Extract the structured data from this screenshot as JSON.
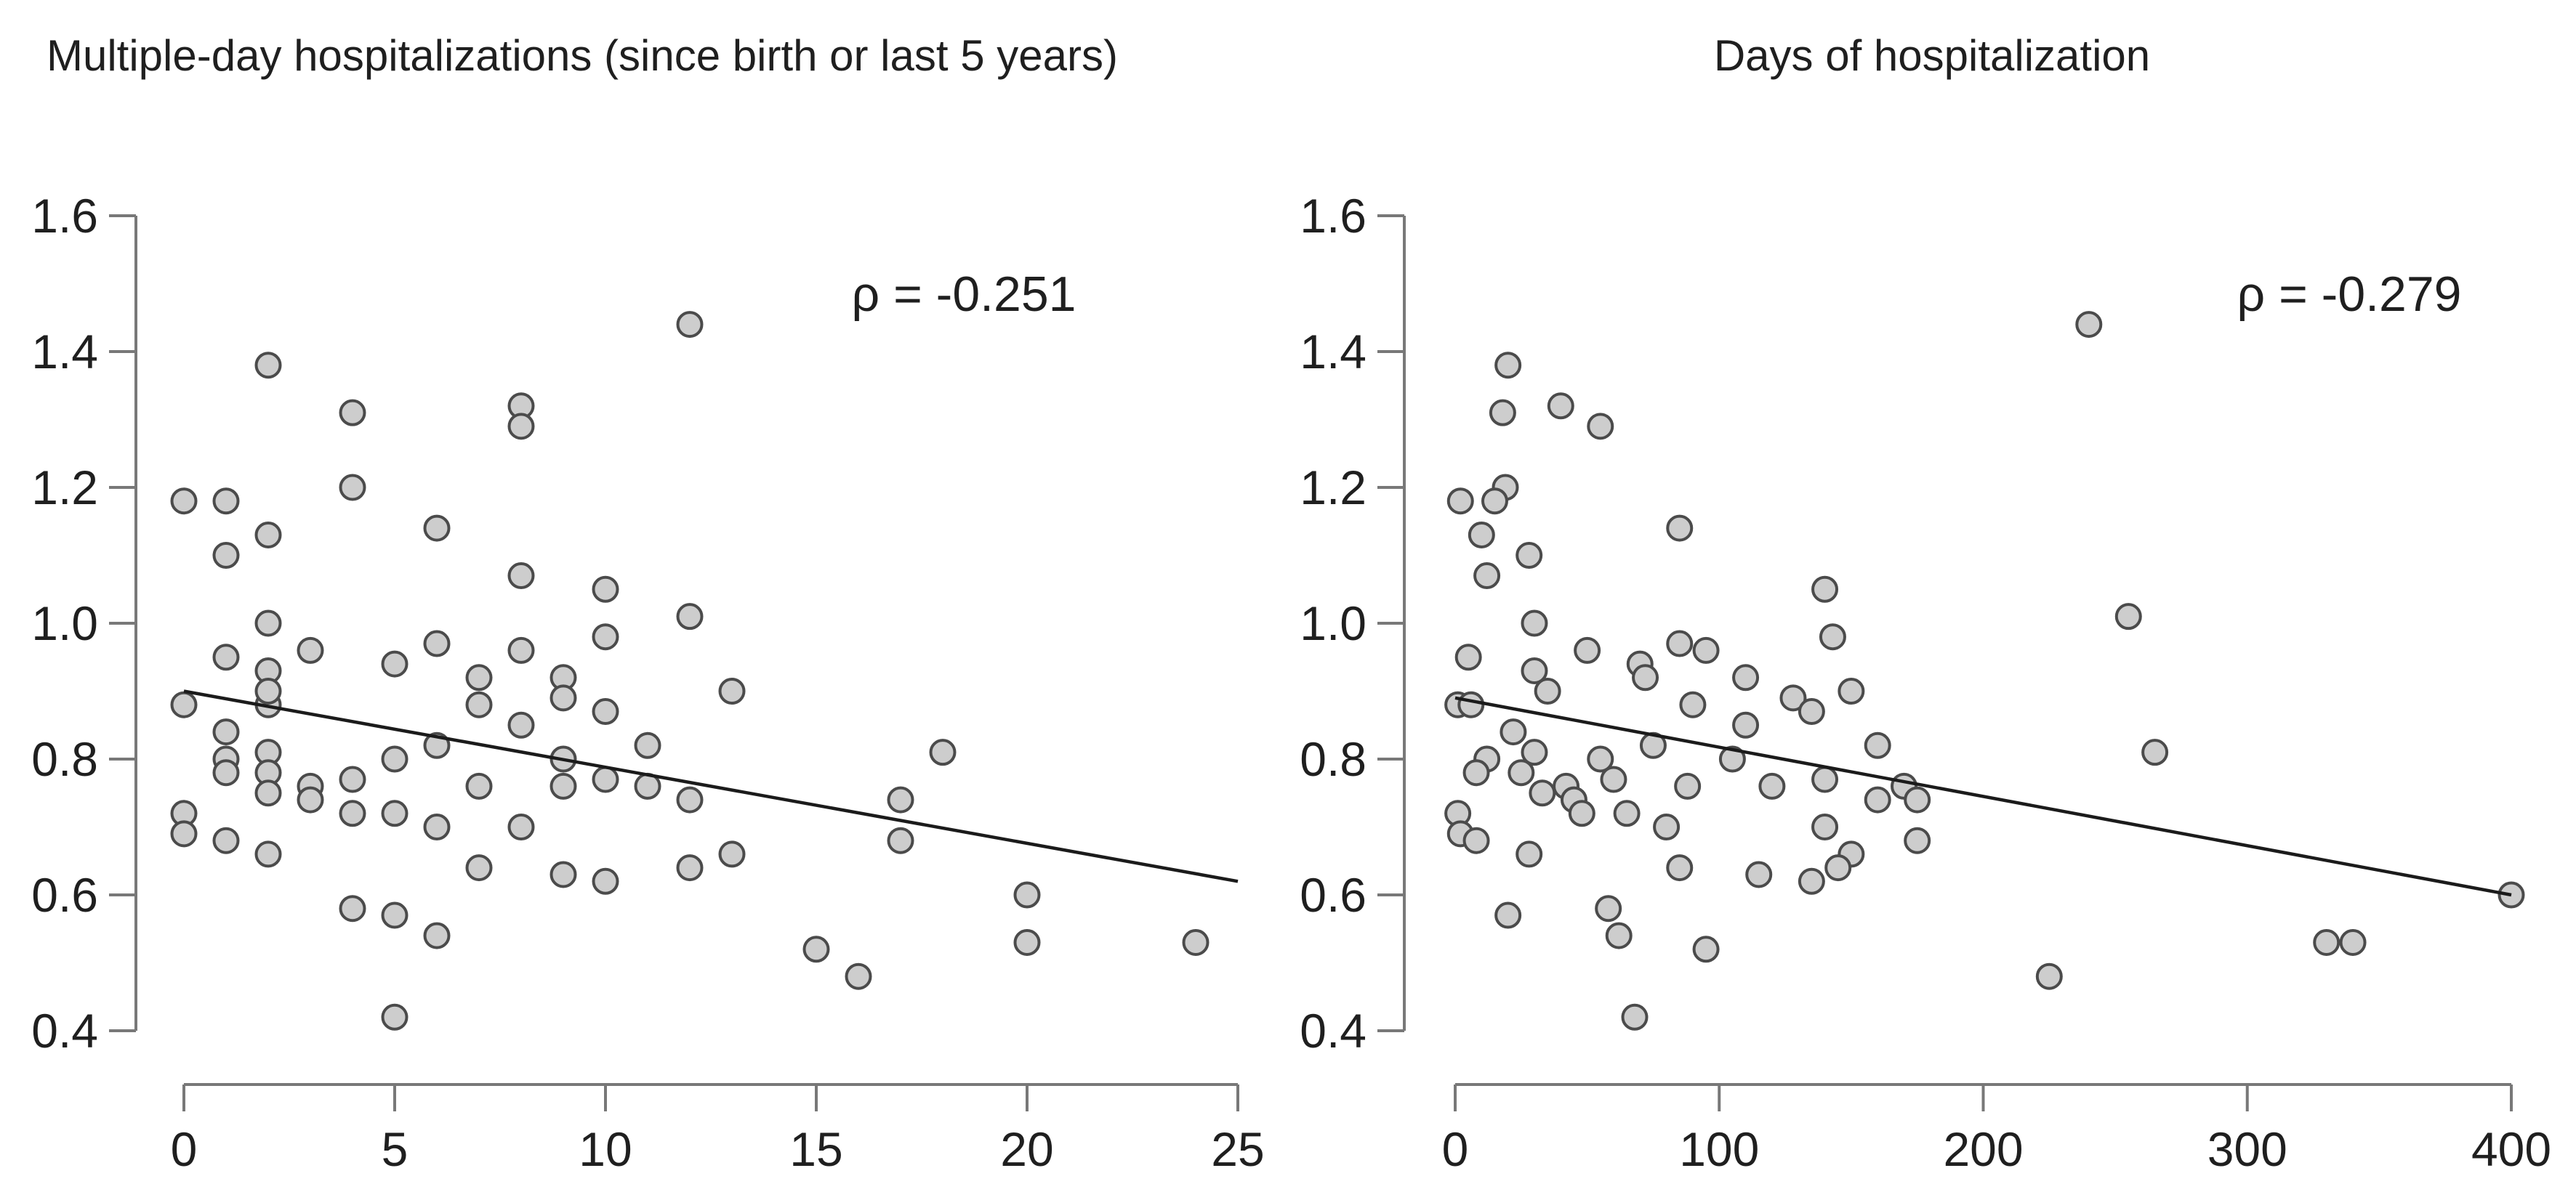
{
  "page": {
    "background": "#ffffff"
  },
  "style": {
    "point_fill": "#cdcdcd",
    "point_stroke": "#4b4b4b",
    "axis_color": "#787878",
    "text_color": "#1f1f1f",
    "trend_color": "#1b1b1b"
  },
  "chart_data": [
    {
      "type": "scatter",
      "title": "Multiple-day hospitalizations (since birth or last 5 years)",
      "annotation": "ρ = -0.251",
      "xlabel": "",
      "ylabel": "",
      "xlim": [
        0,
        25
      ],
      "ylim": [
        0.4,
        1.6
      ],
      "grid": false,
      "legend": false,
      "x_ticks": [
        "0",
        "5",
        "10",
        "15",
        "20",
        "25"
      ],
      "y_ticks": [
        "1.6",
        "1.4",
        "1.2",
        "1.0",
        "0.8",
        "0.6",
        "0.4"
      ],
      "trend_line": {
        "x1": 0,
        "y1": 0.9,
        "x2": 25,
        "y2": 0.62
      },
      "points": [
        [
          12,
          1.44
        ],
        [
          2,
          1.38
        ],
        [
          4,
          1.31
        ],
        [
          8,
          1.32
        ],
        [
          8,
          1.29
        ],
        [
          4,
          1.2
        ],
        [
          0,
          1.18
        ],
        [
          1,
          1.18
        ],
        [
          6,
          1.14
        ],
        [
          2,
          1.13
        ],
        [
          1,
          1.1
        ],
        [
          8,
          1.07
        ],
        [
          10,
          1.05
        ],
        [
          12,
          1.01
        ],
        [
          2,
          1.0
        ],
        [
          10,
          0.98
        ],
        [
          1,
          0.95
        ],
        [
          3,
          0.96
        ],
        [
          5,
          0.94
        ],
        [
          2,
          0.93
        ],
        [
          6,
          0.97
        ],
        [
          8,
          0.96
        ],
        [
          7,
          0.92
        ],
        [
          9,
          0.92
        ],
        [
          9,
          0.89
        ],
        [
          13,
          0.9
        ],
        [
          0,
          0.88
        ],
        [
          2,
          0.88
        ],
        [
          7,
          0.88
        ],
        [
          2,
          0.9
        ],
        [
          10,
          0.87
        ],
        [
          8,
          0.85
        ],
        [
          1,
          0.84
        ],
        [
          6,
          0.82
        ],
        [
          11,
          0.82
        ],
        [
          2,
          0.81
        ],
        [
          18,
          0.81
        ],
        [
          1,
          0.8
        ],
        [
          5,
          0.8
        ],
        [
          9,
          0.8
        ],
        [
          2,
          0.78
        ],
        [
          1,
          0.78
        ],
        [
          4,
          0.77
        ],
        [
          10,
          0.77
        ],
        [
          3,
          0.76
        ],
        [
          7,
          0.76
        ],
        [
          9,
          0.76
        ],
        [
          11,
          0.76
        ],
        [
          2,
          0.75
        ],
        [
          3,
          0.74
        ],
        [
          17,
          0.74
        ],
        [
          12,
          0.74
        ],
        [
          0,
          0.72
        ],
        [
          4,
          0.72
        ],
        [
          5,
          0.72
        ],
        [
          6,
          0.7
        ],
        [
          8,
          0.7
        ],
        [
          0,
          0.69
        ],
        [
          1,
          0.68
        ],
        [
          17,
          0.68
        ],
        [
          2,
          0.66
        ],
        [
          13,
          0.66
        ],
        [
          12,
          0.64
        ],
        [
          7,
          0.64
        ],
        [
          9,
          0.63
        ],
        [
          10,
          0.62
        ],
        [
          20,
          0.6
        ],
        [
          4,
          0.58
        ],
        [
          5,
          0.57
        ],
        [
          6,
          0.54
        ],
        [
          20,
          0.53
        ],
        [
          24,
          0.53
        ],
        [
          15,
          0.52
        ],
        [
          16,
          0.48
        ],
        [
          5,
          0.42
        ]
      ]
    },
    {
      "type": "scatter",
      "title": "Days of hospitalization",
      "annotation": "ρ = -0.279",
      "xlabel": "",
      "ylabel": "",
      "xlim": [
        0,
        400
      ],
      "ylim": [
        0.4,
        1.6
      ],
      "grid": false,
      "legend": false,
      "x_ticks": [
        "0",
        "100",
        "200",
        "300",
        "400"
      ],
      "y_ticks": [
        "1.6",
        "1.4",
        "1.2",
        "1.0",
        "0.8",
        "0.6",
        "0.4"
      ],
      "trend_line": {
        "x1": 0,
        "y1": 0.89,
        "x2": 400,
        "y2": 0.6
      },
      "points": [
        [
          240,
          1.44
        ],
        [
          20,
          1.38
        ],
        [
          18,
          1.31
        ],
        [
          40,
          1.32
        ],
        [
          55,
          1.29
        ],
        [
          19,
          1.2
        ],
        [
          2,
          1.18
        ],
        [
          15,
          1.18
        ],
        [
          85,
          1.14
        ],
        [
          10,
          1.13
        ],
        [
          28,
          1.1
        ],
        [
          12,
          1.07
        ],
        [
          140,
          1.05
        ],
        [
          255,
          1.01
        ],
        [
          30,
          1.0
        ],
        [
          143,
          0.98
        ],
        [
          5,
          0.95
        ],
        [
          50,
          0.96
        ],
        [
          70,
          0.94
        ],
        [
          30,
          0.93
        ],
        [
          85,
          0.97
        ],
        [
          95,
          0.96
        ],
        [
          72,
          0.92
        ],
        [
          110,
          0.92
        ],
        [
          128,
          0.89
        ],
        [
          150,
          0.9
        ],
        [
          1,
          0.88
        ],
        [
          6,
          0.88
        ],
        [
          90,
          0.88
        ],
        [
          35,
          0.9
        ],
        [
          135,
          0.87
        ],
        [
          110,
          0.85
        ],
        [
          22,
          0.84
        ],
        [
          75,
          0.82
        ],
        [
          160,
          0.82
        ],
        [
          30,
          0.81
        ],
        [
          265,
          0.81
        ],
        [
          12,
          0.8
        ],
        [
          55,
          0.8
        ],
        [
          105,
          0.8
        ],
        [
          25,
          0.78
        ],
        [
          8,
          0.78
        ],
        [
          60,
          0.77
        ],
        [
          140,
          0.77
        ],
        [
          42,
          0.76
        ],
        [
          88,
          0.76
        ],
        [
          120,
          0.76
        ],
        [
          170,
          0.76
        ],
        [
          33,
          0.75
        ],
        [
          45,
          0.74
        ],
        [
          160,
          0.74
        ],
        [
          175,
          0.74
        ],
        [
          1,
          0.72
        ],
        [
          48,
          0.72
        ],
        [
          65,
          0.72
        ],
        [
          80,
          0.7
        ],
        [
          140,
          0.7
        ],
        [
          2,
          0.69
        ],
        [
          8,
          0.68
        ],
        [
          175,
          0.68
        ],
        [
          28,
          0.66
        ],
        [
          150,
          0.66
        ],
        [
          145,
          0.64
        ],
        [
          85,
          0.64
        ],
        [
          115,
          0.63
        ],
        [
          135,
          0.62
        ],
        [
          400,
          0.6
        ],
        [
          58,
          0.58
        ],
        [
          20,
          0.57
        ],
        [
          62,
          0.54
        ],
        [
          330,
          0.53
        ],
        [
          340,
          0.53
        ],
        [
          95,
          0.52
        ],
        [
          225,
          0.48
        ],
        [
          68,
          0.42
        ]
      ]
    }
  ]
}
